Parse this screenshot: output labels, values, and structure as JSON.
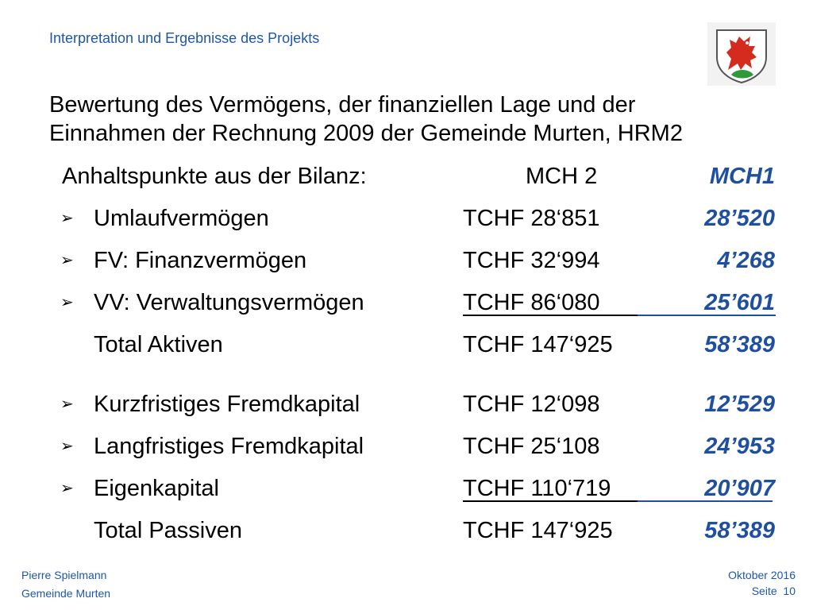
{
  "header": {
    "title": "Interpretation und Ergebnisse des Projekts"
  },
  "heading": {
    "line1": "Bewertung des Vermögens, der finanziellen Lage und der",
    "line2": "Einnahmen der Rechnung 2009 der Gemeinde Murten, HRM2"
  },
  "table": {
    "header": {
      "label": "Anhaltspunkte aus der Bilanz:",
      "mch2": "MCH 2",
      "mch1": "MCH1"
    },
    "rows": [
      {
        "label": "Umlaufvermögen",
        "mch2": "TCHF   28‘851",
        "mch1": "28’520",
        "bullet": true
      },
      {
        "label": "FV: Finanzvermögen",
        "mch2": "TCHF   32‘994",
        "mch1": "4’268",
        "bullet": true
      },
      {
        "label": "VV: Verwaltungsvermögen",
        "mch2": "TCHF   86‘080",
        "mch1": "25’601",
        "bullet": true
      },
      {
        "label": "Total Aktiven",
        "mch2": "TCHF 147‘925",
        "mch1": "58’389",
        "bullet": false
      },
      {
        "label": "Kurzfristiges Fremdkapital",
        "mch2": "TCHF   12‘098",
        "mch1": "12’529",
        "bullet": true
      },
      {
        "label": "Langfristiges Fremdkapital",
        "mch2": "TCHF   25‘108",
        "mch1": "24’953",
        "bullet": true
      },
      {
        "label": "Eigenkapital",
        "mch2": "TCHF 110‘719",
        "mch1": "20’907",
        "bullet": true
      },
      {
        "label": "Total Passiven",
        "mch2": "TCHF 147‘925",
        "mch1": "58’389",
        "bullet": false
      }
    ]
  },
  "footer": {
    "author": "Pierre Spielmann",
    "org": "Gemeinde Murten",
    "date": "Oktober 2016",
    "page_label": "Seite",
    "page_number": "10"
  },
  "bullet_glyph": "➢",
  "colors": {
    "accent": "#1f57a8",
    "mch1": "#1f4fa0",
    "logo_red": "#d52b1e"
  },
  "logo": {
    "icon": "lion-coat-of-arms-icon"
  }
}
